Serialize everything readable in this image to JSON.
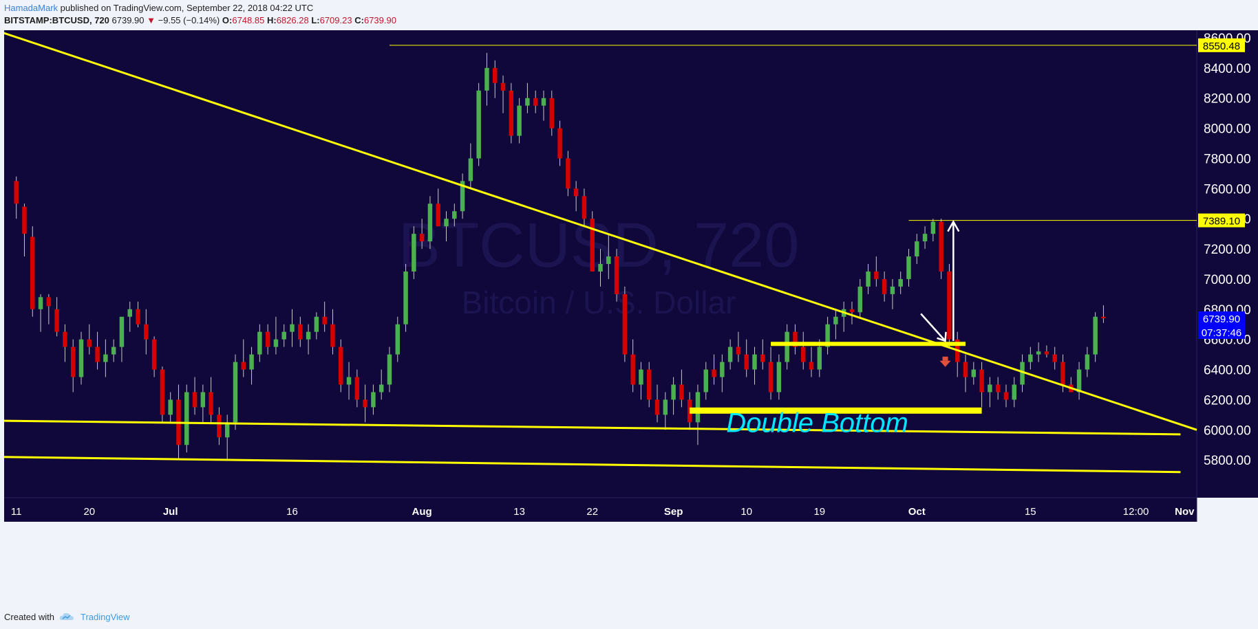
{
  "header": {
    "author": "HamadaMark",
    "published": "published on TradingView.com, September 22, 2018 04:22 UTC",
    "symbol": "BITSTAMP:BTCUSD, 720",
    "last": "6739.90",
    "change_arrow": "▼",
    "change": "−9.55 (−0.14%)",
    "o_label": "O:",
    "o_value": "6748.85",
    "h_label": "H:",
    "h_value": "6826.28",
    "l_label": "L:",
    "l_value": "6709.23",
    "c_label": "C:",
    "c_value": "6739.90"
  },
  "footer": {
    "created_with": "Created with",
    "brand": "TradingView",
    "logo_icon": "tradingview-cloud-icon"
  },
  "colors": {
    "background": "#10073a",
    "up": "#4caf50",
    "down": "#d50000",
    "trendline": "#ffff00",
    "annotation": "#00e5ff",
    "price_badge": "#0000ff"
  },
  "chart_data": {
    "type": "candlestick",
    "watermark_symbol": "BTCUSD, 720",
    "watermark_name": "Bitcoin / U.S. Dollar",
    "price_axis": {
      "ylim": [
        5550,
        8650
      ],
      "ticks": [
        "8600.00",
        "8400.00",
        "8200.00",
        "8000.00",
        "7800.00",
        "7600.00",
        "7400.00",
        "7200.00",
        "7000.00",
        "6800.00",
        "6600.00",
        "6400.00",
        "6200.00",
        "6000.00",
        "5800.00"
      ],
      "tick_values": [
        8600,
        8400,
        8200,
        8000,
        7800,
        7600,
        7400,
        7200,
        7000,
        6800,
        6600,
        6400,
        6200,
        6000,
        5800
      ]
    },
    "time_axis": {
      "labels": [
        "11",
        "20",
        "Jul",
        "16",
        "Aug",
        "13",
        "22",
        "Sep",
        "10",
        "19",
        "Oct",
        "15",
        "12:00",
        "Nov"
      ],
      "day_index": [
        0,
        9,
        19,
        34,
        50,
        62,
        71,
        81,
        90,
        99,
        111,
        125,
        138,
        144
      ],
      "xlim": [
        -1.5,
        145.5
      ]
    },
    "candles_ohlc": [
      [
        7650,
        7680,
        7400,
        7500
      ],
      [
        7480,
        7500,
        7150,
        7300
      ],
      [
        7280,
        7350,
        6750,
        6800
      ],
      [
        6800,
        6900,
        6650,
        6880
      ],
      [
        6880,
        6900,
        6700,
        6820
      ],
      [
        6800,
        6880,
        6620,
        6650
      ],
      [
        6650,
        6700,
        6450,
        6550
      ],
      [
        6550,
        6600,
        6250,
        6350
      ],
      [
        6350,
        6650,
        6300,
        6600
      ],
      [
        6600,
        6700,
        6500,
        6550
      ],
      [
        6550,
        6650,
        6400,
        6450
      ],
      [
        6450,
        6600,
        6350,
        6500
      ],
      [
        6500,
        6600,
        6450,
        6550
      ],
      [
        6550,
        6700,
        6450,
        6750
      ],
      [
        6750,
        6850,
        6650,
        6800
      ],
      [
        6800,
        6850,
        6680,
        6700
      ],
      [
        6700,
        6800,
        6500,
        6600
      ],
      [
        6600,
        6620,
        6350,
        6400
      ],
      [
        6400,
        6420,
        6050,
        6100
      ],
      [
        6100,
        6250,
        6050,
        6200
      ],
      [
        6200,
        6300,
        5800,
        5900
      ],
      [
        5900,
        6300,
        5850,
        6250
      ],
      [
        6250,
        6350,
        6100,
        6150
      ],
      [
        6150,
        6300,
        6050,
        6250
      ],
      [
        6250,
        6350,
        6050,
        6100
      ],
      [
        6100,
        6150,
        5900,
        5950
      ],
      [
        5950,
        6100,
        5800,
        6050
      ],
      [
        6050,
        6500,
        6000,
        6450
      ],
      [
        6450,
        6600,
        6350,
        6400
      ],
      [
        6400,
        6550,
        6300,
        6500
      ],
      [
        6500,
        6700,
        6450,
        6650
      ],
      [
        6650,
        6700,
        6500,
        6550
      ],
      [
        6550,
        6750,
        6500,
        6600
      ],
      [
        6600,
        6700,
        6550,
        6650
      ],
      [
        6650,
        6800,
        6550,
        6700
      ],
      [
        6700,
        6750,
        6550,
        6600
      ],
      [
        6600,
        6700,
        6500,
        6650
      ],
      [
        6650,
        6780,
        6600,
        6750
      ],
      [
        6750,
        6850,
        6650,
        6700
      ],
      [
        6700,
        6800,
        6500,
        6550
      ],
      [
        6550,
        6600,
        6250,
        6300
      ],
      [
        6300,
        6450,
        6200,
        6350
      ],
      [
        6350,
        6400,
        6150,
        6200
      ],
      [
        6200,
        6300,
        6050,
        6150
      ],
      [
        6150,
        6300,
        6100,
        6250
      ],
      [
        6250,
        6400,
        6200,
        6300
      ],
      [
        6300,
        6550,
        6250,
        6500
      ],
      [
        6500,
        6750,
        6450,
        6700
      ],
      [
        6700,
        7100,
        6650,
        7050
      ],
      [
        7050,
        7350,
        7000,
        7300
      ],
      [
        7300,
        7400,
        7200,
        7250
      ],
      [
        7250,
        7550,
        7200,
        7500
      ],
      [
        7500,
        7600,
        7350,
        7350
      ],
      [
        7350,
        7450,
        7250,
        7400
      ],
      [
        7400,
        7500,
        7350,
        7450
      ],
      [
        7450,
        7700,
        7400,
        7650
      ],
      [
        7650,
        7900,
        7600,
        7800
      ],
      [
        7800,
        8300,
        7750,
        8250
      ],
      [
        8250,
        8500,
        8150,
        8400
      ],
      [
        8400,
        8450,
        8200,
        8300
      ],
      [
        8300,
        8350,
        8100,
        8250
      ],
      [
        8250,
        8300,
        7900,
        7950
      ],
      [
        7950,
        8200,
        7900,
        8150
      ],
      [
        8150,
        8300,
        8100,
        8200
      ],
      [
        8200,
        8250,
        8100,
        8150
      ],
      [
        8150,
        8250,
        8050,
        8200
      ],
      [
        8200,
        8250,
        7950,
        8000
      ],
      [
        8000,
        8050,
        7750,
        7800
      ],
      [
        7800,
        7850,
        7550,
        7600
      ],
      [
        7600,
        7650,
        7450,
        7550
      ],
      [
        7550,
        7600,
        7350,
        7400
      ],
      [
        7400,
        7450,
        7050,
        7050
      ],
      [
        7050,
        7200,
        6950,
        7100
      ],
      [
        7100,
        7300,
        7000,
        7150
      ],
      [
        7150,
        7200,
        6850,
        6900
      ],
      [
        6900,
        6950,
        6450,
        6500
      ],
      [
        6500,
        6600,
        6250,
        6300
      ],
      [
        6300,
        6450,
        6200,
        6400
      ],
      [
        6400,
        6450,
        6150,
        6200
      ],
      [
        6200,
        6300,
        6050,
        6100
      ],
      [
        6100,
        6250,
        6000,
        6200
      ],
      [
        6200,
        6350,
        6100,
        6300
      ],
      [
        6300,
        6400,
        6150,
        6200
      ],
      [
        6200,
        6250,
        6000,
        6050
      ],
      [
        6050,
        6300,
        5900,
        6250
      ],
      [
        6250,
        6450,
        6200,
        6400
      ],
      [
        6400,
        6500,
        6300,
        6350
      ],
      [
        6350,
        6500,
        6250,
        6450
      ],
      [
        6450,
        6600,
        6400,
        6550
      ],
      [
        6550,
        6650,
        6450,
        6500
      ],
      [
        6500,
        6600,
        6350,
        6400
      ],
      [
        6400,
        6550,
        6300,
        6500
      ],
      [
        6500,
        6600,
        6400,
        6450
      ],
      [
        6450,
        6550,
        6200,
        6250
      ],
      [
        6250,
        6500,
        6200,
        6450
      ],
      [
        6450,
        6700,
        6400,
        6650
      ],
      [
        6650,
        6700,
        6500,
        6550
      ],
      [
        6550,
        6650,
        6400,
        6450
      ],
      [
        6450,
        6550,
        6350,
        6400
      ],
      [
        6400,
        6600,
        6350,
        6550
      ],
      [
        6550,
        6750,
        6500,
        6700
      ],
      [
        6700,
        6800,
        6600,
        6750
      ],
      [
        6750,
        6850,
        6650,
        6800
      ],
      [
        6800,
        6850,
        6700,
        6780
      ],
      [
        6780,
        7000,
        6750,
        6950
      ],
      [
        6950,
        7100,
        6900,
        7050
      ],
      [
        7050,
        7150,
        6950,
        7000
      ],
      [
        7000,
        7050,
        6850,
        6900
      ],
      [
        6900,
        7000,
        6800,
        6950
      ],
      [
        6950,
        7050,
        6900,
        7000
      ],
      [
        7000,
        7200,
        6950,
        7150
      ],
      [
        7150,
        7300,
        7100,
        7250
      ],
      [
        7250,
        7350,
        7200,
        7300
      ],
      [
        7300,
        7400,
        7250,
        7380
      ],
      [
        7380,
        7400,
        7000,
        7050
      ],
      [
        7050,
        7100,
        6550,
        6600
      ],
      [
        6600,
        6650,
        6350,
        6450
      ],
      [
        6450,
        6500,
        6250,
        6350
      ],
      [
        6350,
        6450,
        6300,
        6400
      ],
      [
        6400,
        6450,
        6150,
        6250
      ],
      [
        6250,
        6350,
        6150,
        6300
      ],
      [
        6300,
        6350,
        6200,
        6250
      ],
      [
        6250,
        6300,
        6150,
        6200
      ],
      [
        6200,
        6350,
        6150,
        6300
      ],
      [
        6300,
        6500,
        6250,
        6450
      ],
      [
        6450,
        6550,
        6400,
        6500
      ],
      [
        6500,
        6580,
        6450,
        6520
      ],
      [
        6520,
        6560,
        6480,
        6500
      ],
      [
        6500,
        6550,
        6400,
        6450
      ],
      [
        6450,
        6500,
        6250,
        6300
      ],
      [
        6300,
        6350,
        6250,
        6250
      ],
      [
        6250,
        6450,
        6200,
        6400
      ],
      [
        6400,
        6550,
        6350,
        6500
      ],
      [
        6500,
        6780,
        6450,
        6750
      ],
      [
        6750,
        6826,
        6709,
        6740
      ]
    ],
    "levels": [
      {
        "label": "8550.48",
        "value": 8550.48
      },
      {
        "label": "7389.10",
        "value": 7389.1
      }
    ],
    "current_price": {
      "label": "6739.90",
      "value": 6739.9,
      "countdown": "07:37:46"
    },
    "drawings": {
      "descending_trendline": [
        [
          -2,
          8640
        ],
        [
          145.5,
          6000
        ]
      ],
      "lower_channel_top": [
        [
          -1.5,
          6060
        ],
        [
          143.5,
          5970
        ]
      ],
      "lower_channel_bottom": [
        [
          -1.5,
          5820
        ],
        [
          143.5,
          5720
        ]
      ],
      "neckline": {
        "from": 93,
        "to": 117,
        "value": 6570
      },
      "support": {
        "from": 83,
        "to": 119,
        "value": 6130
      },
      "target_arrow": {
        "x": 115.5,
        "from": 6590,
        "to": 7380
      },
      "pullback_arrow": [
        [
          111.5,
          6770
        ],
        [
          114.5,
          6590
        ]
      ],
      "red_down_marker": {
        "x": 114.5,
        "value": 6440
      },
      "swing_high_line_start": 46
    },
    "annotations": [
      "Double Bottom"
    ]
  }
}
